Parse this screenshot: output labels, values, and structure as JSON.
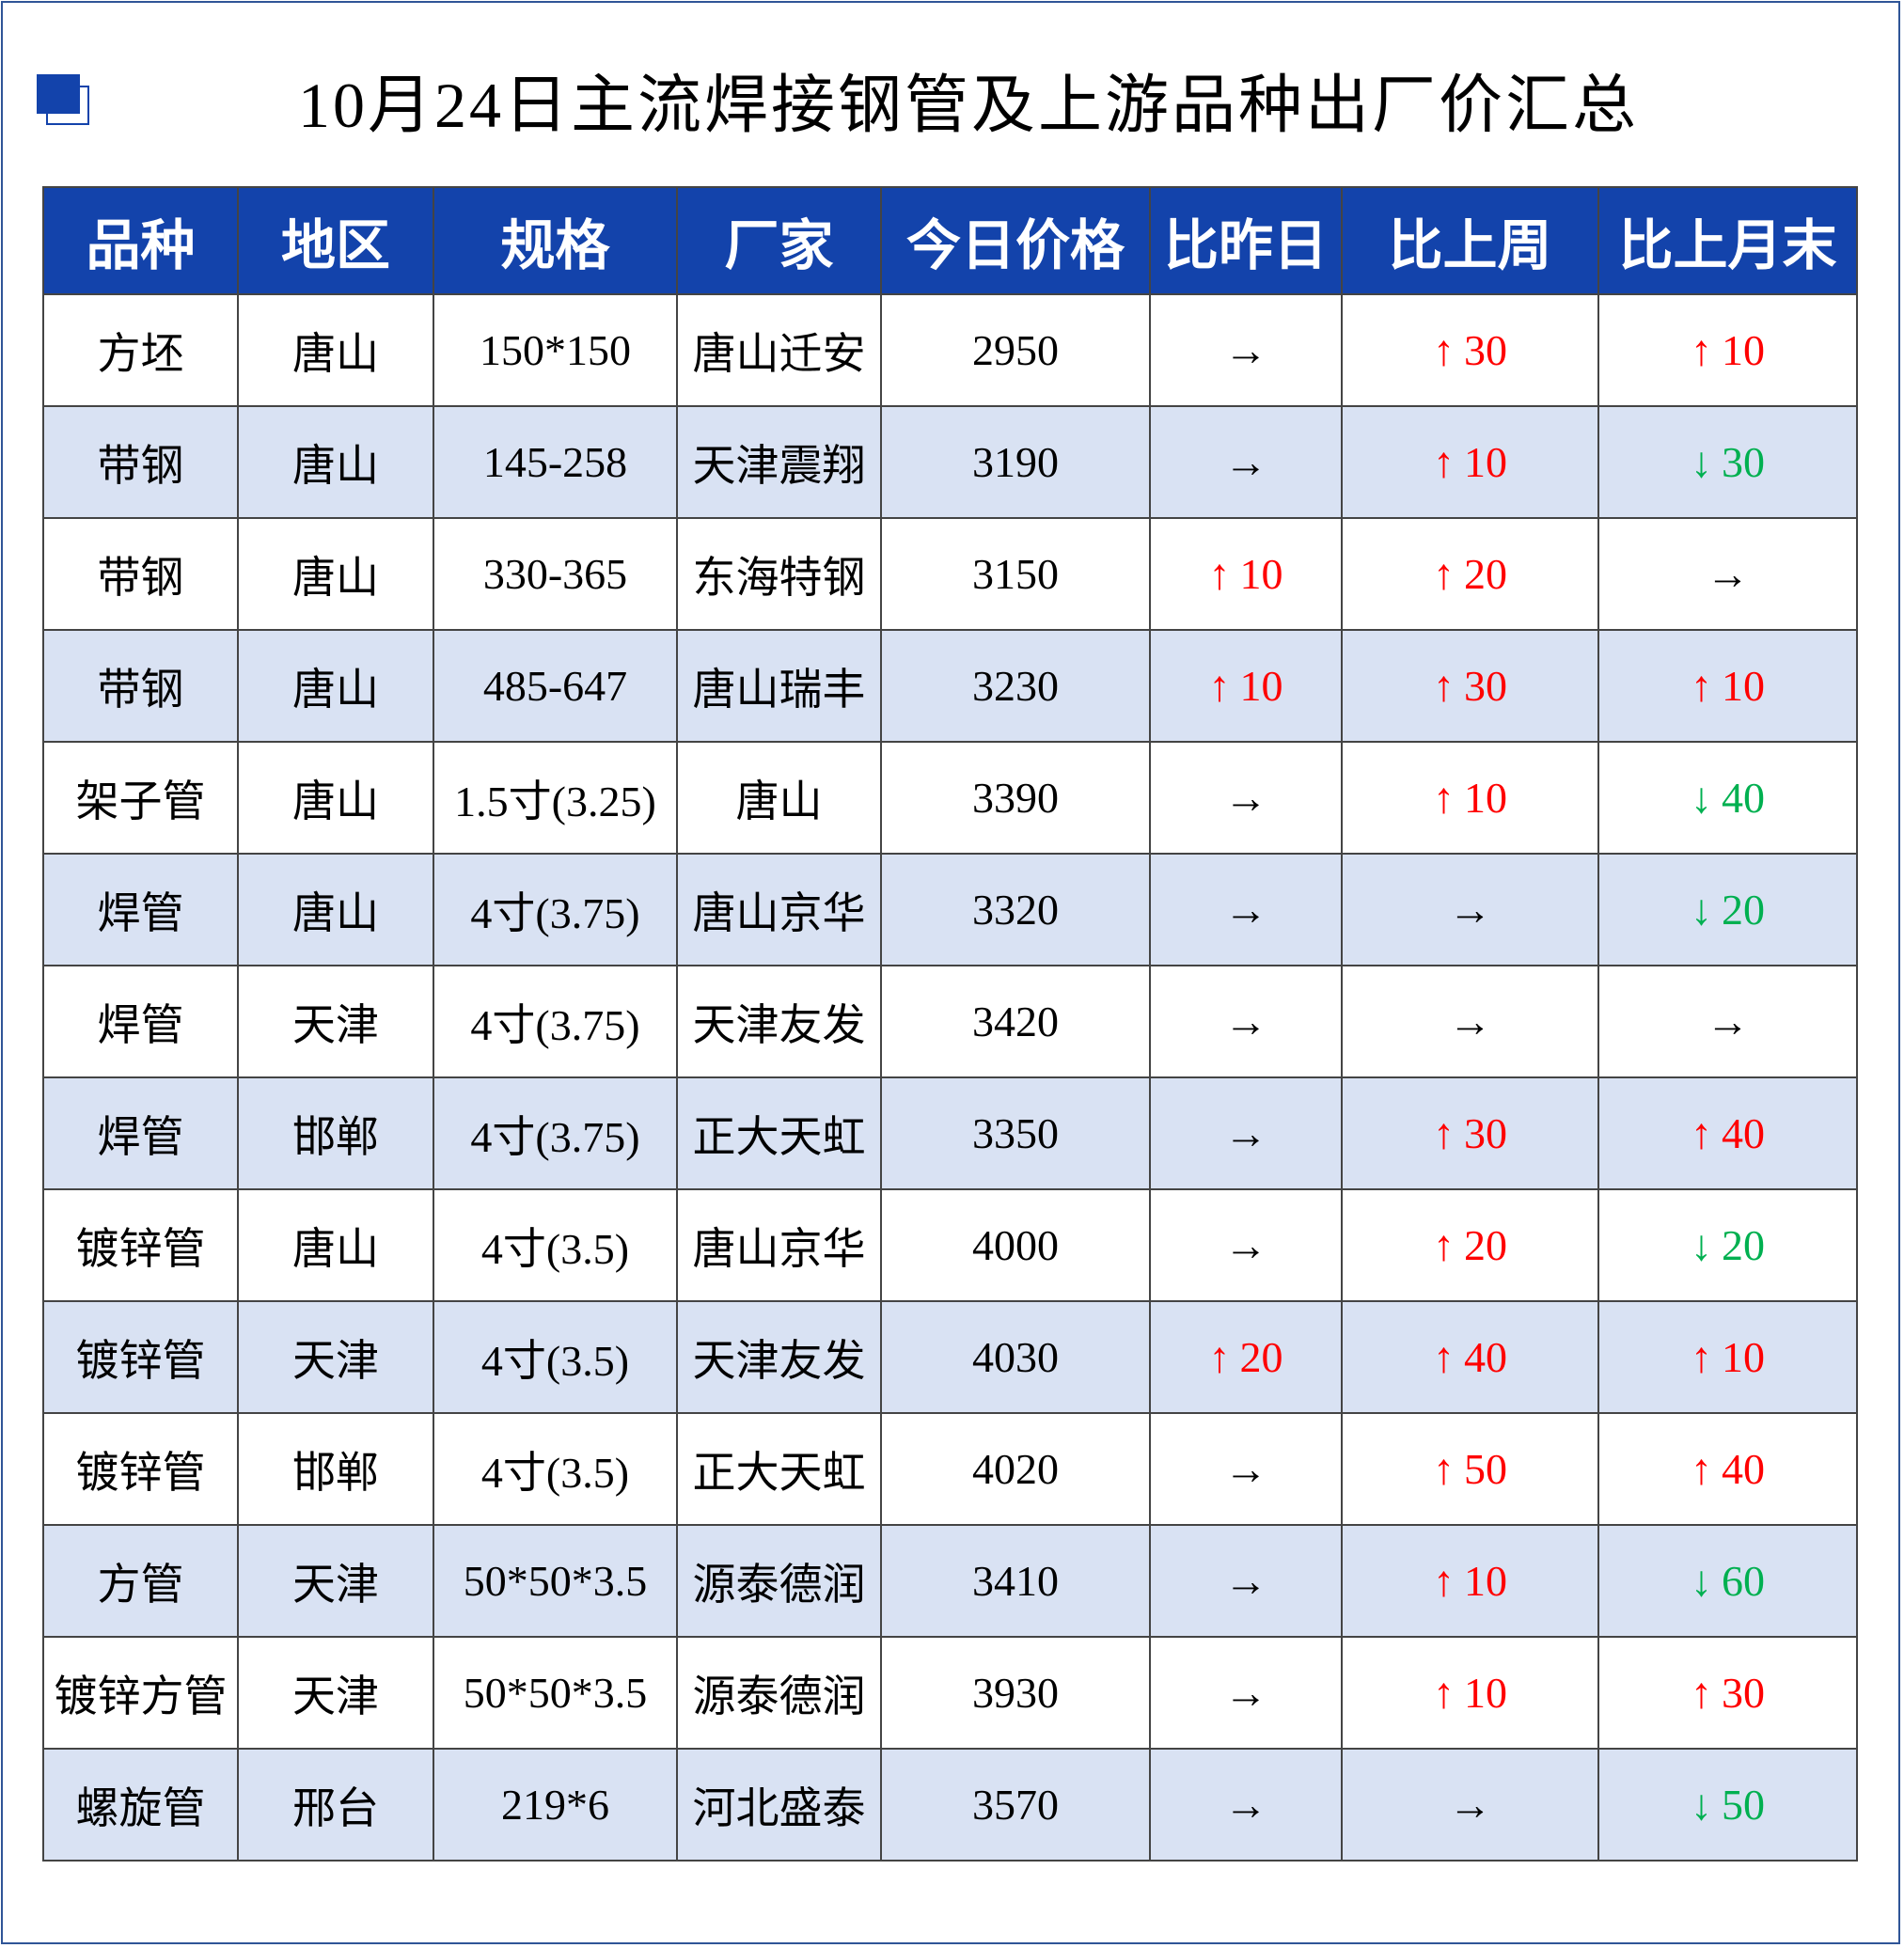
{
  "title": "10月24日主流焊接钢管及上游品种出厂价汇总",
  "colors": {
    "header_bg": "#1343ab",
    "alt_row": "#d9e2f3",
    "up": "#ff0000",
    "down": "#00b050",
    "border": "#2f5597"
  },
  "icons": {
    "up": "↑",
    "down": "↓",
    "flat": "→"
  },
  "columns": [
    "品种",
    "地区",
    "规格",
    "厂家",
    "今日价格",
    "比昨日",
    "比上周",
    "比上月末"
  ],
  "rows": [
    {
      "item": "方坯",
      "region": "唐山",
      "spec": "150*150",
      "maker": "唐山迁安",
      "price": "2950",
      "day": {
        "dir": "flat",
        "val": ""
      },
      "week": {
        "dir": "up",
        "val": "30"
      },
      "month": {
        "dir": "up",
        "val": "10"
      }
    },
    {
      "item": "带钢",
      "region": "唐山",
      "spec": "145-258",
      "maker": "天津震翔",
      "price": "3190",
      "day": {
        "dir": "flat",
        "val": ""
      },
      "week": {
        "dir": "up",
        "val": "10"
      },
      "month": {
        "dir": "down",
        "val": "30"
      }
    },
    {
      "item": "带钢",
      "region": "唐山",
      "spec": "330-365",
      "maker": "东海特钢",
      "price": "3150",
      "day": {
        "dir": "up",
        "val": "10"
      },
      "week": {
        "dir": "up",
        "val": "20"
      },
      "month": {
        "dir": "flat",
        "val": ""
      }
    },
    {
      "item": "带钢",
      "region": "唐山",
      "spec": "485-647",
      "maker": "唐山瑞丰",
      "price": "3230",
      "day": {
        "dir": "up",
        "val": "10"
      },
      "week": {
        "dir": "up",
        "val": "30"
      },
      "month": {
        "dir": "up",
        "val": "10"
      }
    },
    {
      "item": "架子管",
      "region": "唐山",
      "spec": "1.5寸(3.25)",
      "maker": "唐山",
      "price": "3390",
      "day": {
        "dir": "flat",
        "val": ""
      },
      "week": {
        "dir": "up",
        "val": "10"
      },
      "month": {
        "dir": "down",
        "val": "40"
      }
    },
    {
      "item": "焊管",
      "region": "唐山",
      "spec": "4寸(3.75)",
      "maker": "唐山京华",
      "price": "3320",
      "day": {
        "dir": "flat",
        "val": ""
      },
      "week": {
        "dir": "flat",
        "val": ""
      },
      "month": {
        "dir": "down",
        "val": "20"
      }
    },
    {
      "item": "焊管",
      "region": "天津",
      "spec": "4寸(3.75)",
      "maker": "天津友发",
      "price": "3420",
      "day": {
        "dir": "flat",
        "val": ""
      },
      "week": {
        "dir": "flat",
        "val": ""
      },
      "month": {
        "dir": "flat",
        "val": ""
      }
    },
    {
      "item": "焊管",
      "region": "邯郸",
      "spec": "4寸(3.75)",
      "maker": "正大天虹",
      "price": "3350",
      "day": {
        "dir": "flat",
        "val": ""
      },
      "week": {
        "dir": "up",
        "val": "30"
      },
      "month": {
        "dir": "up",
        "val": "40"
      }
    },
    {
      "item": "镀锌管",
      "region": "唐山",
      "spec": "4寸(3.5)",
      "maker": "唐山京华",
      "price": "4000",
      "day": {
        "dir": "flat",
        "val": ""
      },
      "week": {
        "dir": "up",
        "val": "20"
      },
      "month": {
        "dir": "down",
        "val": "20"
      }
    },
    {
      "item": "镀锌管",
      "region": "天津",
      "spec": "4寸(3.5)",
      "maker": "天津友发",
      "price": "4030",
      "day": {
        "dir": "up",
        "val": "20"
      },
      "week": {
        "dir": "up",
        "val": "40"
      },
      "month": {
        "dir": "up",
        "val": "10"
      }
    },
    {
      "item": "镀锌管",
      "region": "邯郸",
      "spec": "4寸(3.5)",
      "maker": "正大天虹",
      "price": "4020",
      "day": {
        "dir": "flat",
        "val": ""
      },
      "week": {
        "dir": "up",
        "val": "50"
      },
      "month": {
        "dir": "up",
        "val": "40"
      }
    },
    {
      "item": "方管",
      "region": "天津",
      "spec": "50*50*3.5",
      "maker": "源泰德润",
      "price": "3410",
      "day": {
        "dir": "flat",
        "val": ""
      },
      "week": {
        "dir": "up",
        "val": "10"
      },
      "month": {
        "dir": "down",
        "val": "60"
      }
    },
    {
      "item": "镀锌方管",
      "region": "天津",
      "spec": "50*50*3.5",
      "maker": "源泰德润",
      "price": "3930",
      "day": {
        "dir": "flat",
        "val": ""
      },
      "week": {
        "dir": "up",
        "val": "10"
      },
      "month": {
        "dir": "up",
        "val": "30"
      }
    },
    {
      "item": "螺旋管",
      "region": "邢台",
      "spec": "219*6",
      "maker": "河北盛泰",
      "price": "3570",
      "day": {
        "dir": "flat",
        "val": ""
      },
      "week": {
        "dir": "flat",
        "val": ""
      },
      "month": {
        "dir": "down",
        "val": "50"
      }
    }
  ]
}
